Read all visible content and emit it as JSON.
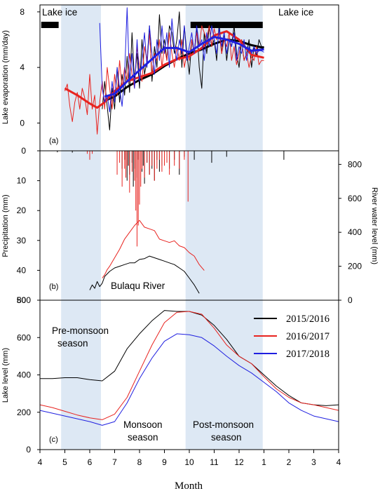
{
  "x_axis": {
    "title": "Month",
    "tick_labels": [
      "4",
      "5",
      "6",
      "7",
      "8",
      "9",
      "10",
      "11",
      "12",
      "1",
      "2",
      "3",
      "4"
    ]
  },
  "legend": [
    {
      "label": "2015/2016",
      "color": "#000000"
    },
    {
      "label": "2016/2017",
      "color": "#e8231f"
    },
    {
      "label": "2017/2018",
      "color": "#1f1fe0"
    }
  ],
  "shading_color": "#dde8f4",
  "chart_data": [
    {
      "panel_label": "(a)",
      "type": "line",
      "ylabel": "Lake evaporation (mm/day)",
      "ylim": [
        -2,
        8.5
      ],
      "y_ticks": [
        "8",
        "4",
        "0"
      ],
      "annotations": [
        "Lake ice",
        "Lake ice"
      ],
      "ice_periods": [
        [
          4.05,
          4.75
        ],
        [
          10.05,
          12.95
        ]
      ],
      "series": [
        {
          "name": "2015/2016",
          "color": "#000000",
          "style": "raw",
          "x": [
            6.5,
            6.6,
            6.7,
            6.8,
            6.9,
            7.0,
            7.1,
            7.2,
            7.3,
            7.4,
            7.5,
            7.6,
            7.7,
            7.8,
            7.9,
            8.0,
            8.1,
            8.2,
            8.3,
            8.4,
            8.5,
            8.6,
            8.7,
            8.8,
            8.9,
            9.0,
            9.1,
            9.2,
            9.3,
            9.4,
            9.5,
            9.6,
            9.7,
            9.8,
            9.9,
            10.0,
            10.1,
            10.2,
            10.3,
            10.4,
            10.5,
            10.6,
            10.7,
            10.8,
            10.9,
            11.0,
            11.1,
            11.2,
            11.3,
            11.4,
            11.5,
            11.6,
            11.7,
            11.8,
            11.9,
            12.0,
            12.1,
            12.2,
            12.3,
            12.4,
            12.5,
            12.6,
            12.7,
            12.8,
            12.9,
            13.0
          ],
          "y": [
            1.0,
            3.0,
            1.2,
            -0.5,
            2.5,
            1.0,
            4.0,
            1.5,
            3.5,
            2.0,
            4.8,
            2.2,
            6.5,
            3.0,
            5.0,
            2.5,
            6.0,
            3.5,
            4.5,
            7.0,
            3.0,
            5.5,
            4.0,
            7.8,
            5.0,
            6.0,
            4.5,
            7.0,
            6.5,
            5.0,
            6.0,
            8.0,
            4.0,
            7.0,
            5.0,
            3.5,
            6.0,
            5.0,
            7.0,
            4.0,
            2.5,
            6.5,
            5.0,
            7.0,
            5.5,
            6.0,
            4.5,
            7.2,
            5.0,
            6.5,
            4.5,
            6.0,
            5.5,
            7.0,
            5.0,
            4.0,
            6.0,
            4.5,
            5.0,
            6.0,
            4.0,
            5.5,
            4.8,
            6.0,
            5.5,
            5.5
          ]
        },
        {
          "name": "2015/2016",
          "color": "#000000",
          "style": "smoothed",
          "x": [
            6.6,
            7.0,
            7.5,
            8.0,
            8.5,
            9.0,
            9.5,
            10.0,
            10.5,
            11.0,
            11.5,
            12.0,
            12.5,
            13.0
          ],
          "y": [
            1.6,
            1.9,
            2.6,
            3.1,
            3.5,
            4.1,
            4.6,
            5.0,
            5.3,
            5.7,
            6.0,
            5.9,
            5.6,
            5.4
          ]
        },
        {
          "name": "2016/2017",
          "color": "#e8231f",
          "style": "raw",
          "x": [
            5.0,
            5.1,
            5.2,
            5.3,
            5.4,
            5.5,
            5.6,
            5.7,
            5.8,
            5.9,
            6.0,
            6.1,
            6.2,
            6.3,
            6.4,
            6.5,
            6.6,
            6.7,
            6.8,
            6.9,
            7.0,
            7.1,
            7.2,
            7.3,
            7.4,
            7.5,
            7.6,
            7.7,
            7.8,
            7.9,
            8.0,
            8.1,
            8.2,
            8.3,
            8.4,
            8.5,
            8.6,
            8.7,
            8.8,
            8.9,
            9.0,
            9.1,
            9.2,
            9.3,
            9.4,
            9.5,
            9.6,
            9.7,
            9.8,
            9.9,
            10.0,
            10.1,
            10.2,
            10.3,
            10.4,
            10.5,
            10.6,
            10.7,
            10.8,
            10.9,
            11.0,
            11.1,
            11.2,
            11.3,
            11.4,
            11.5,
            11.6,
            11.7,
            11.8,
            11.9,
            12.0,
            12.1,
            12.2,
            12.3,
            12.4,
            12.5,
            12.6,
            12.7,
            12.8,
            12.9,
            13.0
          ],
          "y": [
            2.3,
            2.8,
            1.2,
            0.1,
            1.5,
            2.2,
            1.0,
            2.5,
            1.8,
            0.6,
            3.5,
            1.0,
            2.0,
            -0.8,
            1.5,
            3.0,
            1.0,
            4.0,
            2.5,
            1.0,
            3.5,
            2.0,
            4.5,
            2.5,
            4.0,
            3.0,
            5.0,
            3.5,
            2.5,
            5.5,
            4.0,
            3.0,
            5.5,
            4.5,
            6.5,
            3.5,
            5.0,
            4.5,
            6.0,
            4.0,
            5.5,
            4.5,
            6.5,
            5.0,
            4.0,
            5.5,
            4.5,
            6.0,
            4.0,
            5.0,
            4.5,
            6.0,
            5.0,
            6.5,
            5.5,
            7.0,
            6.5,
            6.0,
            7.0,
            5.5,
            6.8,
            6.0,
            6.5,
            5.0,
            6.0,
            5.5,
            6.5,
            4.5,
            5.5,
            4.2,
            5.0,
            6.0,
            4.5,
            5.0,
            4.0,
            4.8,
            4.5,
            5.5,
            4.2,
            4.5,
            4.5
          ]
        },
        {
          "name": "2016/2017",
          "color": "#e8231f",
          "style": "smoothed",
          "x": [
            5.0,
            5.5,
            6.0,
            6.3,
            6.6,
            7.0,
            7.5,
            8.0,
            8.5,
            9.0,
            9.5,
            10.0,
            10.5,
            11.0,
            11.5,
            12.0,
            12.5,
            13.0
          ],
          "y": [
            2.5,
            2.0,
            1.4,
            1.1,
            1.5,
            2.3,
            3.0,
            3.3,
            3.6,
            4.2,
            4.6,
            4.8,
            5.4,
            6.3,
            6.6,
            6.0,
            4.9,
            4.7
          ]
        },
        {
          "name": "2017/2018",
          "color": "#1f1fe0",
          "style": "raw",
          "x": [
            6.4,
            6.5,
            6.6,
            6.7,
            6.8,
            6.9,
            7.0,
            7.1,
            7.2,
            7.3,
            7.4,
            7.5,
            7.6,
            7.7,
            7.8,
            7.9,
            8.0,
            8.1,
            8.2,
            8.3,
            8.4,
            8.5,
            8.6,
            8.7,
            8.8,
            8.9,
            9.0,
            9.1,
            9.2,
            9.3,
            9.4,
            9.5,
            9.6,
            9.7,
            9.8,
            9.9,
            10.0,
            10.1,
            10.2,
            10.3,
            10.4,
            10.5,
            10.6,
            10.7,
            10.8,
            10.9,
            11.0,
            11.1,
            11.2,
            11.3,
            11.4,
            11.5,
            11.6,
            11.7,
            11.8,
            11.9,
            12.0,
            12.1,
            12.2,
            12.3,
            12.4,
            12.5,
            12.6,
            12.7,
            12.8,
            12.9,
            13.0
          ],
          "y": [
            7.2,
            2.5,
            1.5,
            2.0,
            0.8,
            3.0,
            1.5,
            4.0,
            2.5,
            1.2,
            3.5,
            8.3,
            3.0,
            5.0,
            2.5,
            6.0,
            3.0,
            4.5,
            6.5,
            4.0,
            7.0,
            5.0,
            3.5,
            6.0,
            4.5,
            7.0,
            5.0,
            6.5,
            4.0,
            7.5,
            5.5,
            4.5,
            6.0,
            5.0,
            7.0,
            4.5,
            5.5,
            6.5,
            5.0,
            7.0,
            5.5,
            6.0,
            4.5,
            6.5,
            5.5,
            7.0,
            6.0,
            5.0,
            6.8,
            5.5,
            6.5,
            5.0,
            6.0,
            5.5,
            6.5,
            4.5,
            5.5,
            5.0,
            6.0,
            4.5,
            5.5,
            5.0,
            5.5,
            5.0,
            5.2,
            5.2,
            5.1
          ]
        },
        {
          "name": "2017/2018",
          "color": "#1f1fe0",
          "style": "smoothed",
          "x": [
            6.6,
            7.0,
            7.5,
            8.0,
            8.5,
            9.0,
            9.5,
            10.0,
            10.5,
            11.0,
            11.5,
            12.0,
            12.5,
            13.0
          ],
          "y": [
            1.9,
            2.1,
            3.0,
            3.8,
            4.6,
            5.4,
            5.4,
            5.1,
            5.7,
            6.2,
            6.0,
            5.7,
            5.2,
            5.3
          ]
        }
      ]
    },
    {
      "panel_label": "(b)",
      "type": "line",
      "ylabel": "Precipitation (mm)",
      "y2label": "River water level (mm)",
      "ylim": [
        0,
        50
      ],
      "y2lim": [
        0,
        880
      ],
      "y_ticks": [
        "0",
        "10",
        "20",
        "30",
        "40",
        "50"
      ],
      "y2_ticks": [
        "800",
        "600",
        "400",
        "200",
        "0"
      ],
      "annotations": [
        "Bulaqu River"
      ],
      "series": [
        {
          "name": "2015/2016 precipitation",
          "color": "#000000",
          "style": "bars",
          "x": [
            4.7,
            5.3,
            7.3,
            7.4,
            7.5,
            7.55,
            7.6,
            7.7,
            7.75,
            7.8,
            7.9,
            7.95,
            8.0,
            8.1,
            8.15,
            8.2,
            8.3,
            8.4,
            8.5,
            8.6,
            8.7,
            8.8,
            8.9,
            9.0,
            9.2,
            9.4,
            9.6,
            9.8,
            10.2,
            10.9,
            11.5,
            13.8
          ],
          "y": [
            0.5,
            0.6,
            6,
            3,
            10,
            5,
            8,
            4,
            12,
            6,
            9,
            3,
            15,
            7,
            5,
            11,
            4,
            8,
            6,
            10,
            3,
            7,
            5,
            4,
            6,
            3,
            8,
            2,
            3,
            4,
            2,
            3
          ]
        },
        {
          "name": "2016/2017 precipitation",
          "color": "#e8231f",
          "style": "bars",
          "x": [
            5.9,
            6.0,
            6.1,
            7.1,
            7.2,
            7.3,
            7.4,
            7.45,
            7.5,
            7.6,
            7.7,
            7.8,
            7.85,
            7.9,
            7.95,
            8.0,
            8.05,
            8.1,
            8.2,
            8.3,
            8.4,
            8.5,
            8.6,
            8.7,
            8.8,
            8.9,
            9.0,
            9.1,
            9.2,
            9.4,
            9.6,
            9.8,
            9.95
          ],
          "y": [
            1,
            3,
            1,
            8,
            4,
            12,
            6,
            9,
            5,
            14,
            7,
            10,
            20,
            32,
            25,
            18,
            12,
            6,
            9,
            4,
            8,
            5,
            10,
            6,
            3,
            7,
            5,
            4,
            8,
            5,
            6,
            3,
            17
          ]
        },
        {
          "name": "Bulaqu River water level",
          "color": "#000000",
          "style": "secondary",
          "x": [
            6.0,
            6.1,
            6.2,
            6.3,
            6.4,
            6.5,
            6.6,
            6.8,
            7.0,
            7.2,
            7.4,
            7.6,
            7.8,
            8.0,
            8.2,
            8.4,
            8.6,
            8.8,
            9.0,
            9.2,
            9.4,
            9.6,
            9.8,
            10.0,
            10.2,
            10.4
          ],
          "y": [
            60,
            90,
            70,
            110,
            80,
            100,
            140,
            170,
            190,
            200,
            210,
            220,
            220,
            240,
            245,
            260,
            250,
            240,
            230,
            220,
            210,
            190,
            170,
            130,
            90,
            40
          ]
        },
        {
          "name": "2016/2017 river water level",
          "color": "#e8231f",
          "style": "secondary",
          "x": [
            6.5,
            6.6,
            6.7,
            6.8,
            7.0,
            7.2,
            7.4,
            7.6,
            7.8,
            8.0,
            8.2,
            8.4,
            8.6,
            8.8,
            9.0,
            9.2,
            9.4,
            9.6,
            9.8,
            10.0,
            10.2,
            10.4,
            10.6
          ],
          "y": [
            130,
            150,
            180,
            200,
            250,
            300,
            360,
            400,
            440,
            470,
            430,
            420,
            410,
            360,
            350,
            340,
            350,
            320,
            310,
            280,
            260,
            210,
            175
          ]
        }
      ]
    },
    {
      "panel_label": "(c)",
      "type": "line",
      "ylabel": "Lake level (mm)",
      "ylim": [
        0,
        800
      ],
      "y_ticks": [
        "800",
        "600",
        "400",
        "200",
        "0"
      ],
      "annotations": [
        "Pre-monsoon",
        "season",
        "Monsoon",
        "season",
        "Post-monsoon",
        "season"
      ],
      "series": [
        {
          "name": "2015/2016",
          "color": "#000000",
          "x": [
            4.0,
            4.5,
            5.0,
            5.5,
            6.0,
            6.5,
            7.0,
            7.5,
            8.0,
            8.5,
            9.0,
            9.5,
            10.0,
            10.5,
            11.0,
            11.5,
            12.0,
            12.5,
            13.0,
            13.5,
            14.0,
            14.5,
            15.0,
            15.5,
            16.0
          ],
          "y": [
            380,
            380,
            385,
            385,
            375,
            368,
            420,
            540,
            620,
            690,
            745,
            740,
            740,
            720,
            665,
            590,
            500,
            460,
            400,
            340,
            290,
            250,
            240,
            235,
            240
          ]
        },
        {
          "name": "2016/2017",
          "color": "#e8231f",
          "x": [
            4.0,
            4.5,
            5.0,
            5.5,
            6.0,
            6.5,
            7.0,
            7.5,
            8.0,
            8.5,
            9.0,
            9.5,
            10.0,
            10.5,
            11.0,
            11.5,
            12.0,
            12.5,
            13.0,
            13.5,
            14.0,
            14.5,
            15.0,
            15.5,
            16.0
          ],
          "y": [
            240,
            225,
            205,
            185,
            170,
            160,
            190,
            280,
            420,
            560,
            680,
            735,
            740,
            725,
            650,
            560,
            500,
            460,
            390,
            325,
            280,
            250,
            240,
            225,
            210
          ]
        },
        {
          "name": "2017/2018",
          "color": "#1f1fe0",
          "x": [
            4.0,
            4.5,
            5.0,
            5.5,
            6.0,
            6.5,
            7.0,
            7.5,
            8.0,
            8.5,
            9.0,
            9.5,
            10.0,
            10.5,
            11.0,
            11.5,
            12.0,
            12.5,
            13.0,
            13.5,
            14.0,
            14.5,
            15.0,
            15.5,
            16.0
          ],
          "y": [
            210,
            195,
            180,
            165,
            150,
            130,
            150,
            250,
            380,
            490,
            580,
            620,
            615,
            600,
            555,
            500,
            450,
            410,
            360,
            310,
            250,
            210,
            180,
            165,
            150
          ]
        }
      ]
    }
  ]
}
